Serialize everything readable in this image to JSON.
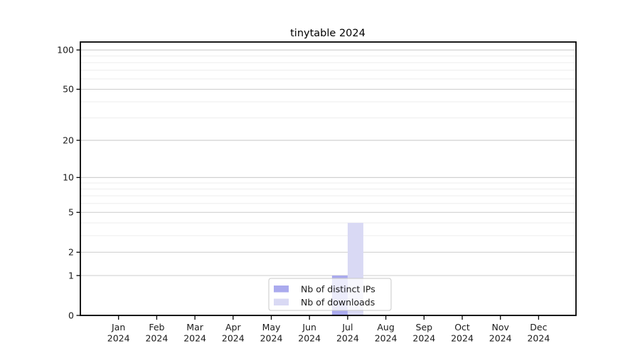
{
  "chart_data": {
    "type": "bar",
    "title": "tinytable 2024",
    "xlabel": "",
    "ylabel": "",
    "categories": [
      "Jan",
      "Feb",
      "Mar",
      "Apr",
      "May",
      "Jun",
      "Jul",
      "Aug",
      "Sep",
      "Oct",
      "Nov",
      "Dec"
    ],
    "x_year": "2024",
    "series": [
      {
        "name": "Nb of distinct IPs",
        "color": "#aaaaee",
        "values": [
          0,
          0,
          0,
          0,
          0,
          0,
          1,
          0,
          0,
          0,
          0,
          0
        ]
      },
      {
        "name": "Nb of downloads",
        "color": "#d9d9f4",
        "values": [
          0,
          0,
          0,
          0,
          0,
          0,
          4,
          0,
          0,
          0,
          0,
          0
        ]
      }
    ],
    "yscale": "log1p",
    "ylim": [
      0,
      115
    ],
    "yticks": [
      0,
      1,
      2,
      5,
      10,
      20,
      50,
      100
    ],
    "minor_gridlines": [
      3,
      4,
      6,
      7,
      8,
      9,
      30,
      40,
      60,
      70,
      80,
      90
    ],
    "grid": "on",
    "legend_position": "lower-center"
  },
  "colors": {
    "major_grid": "#cccccc",
    "minor_grid": "#ededed",
    "axis": "#000000",
    "text": "#1a1a1a",
    "legend_border": "#c8c8c8",
    "legend_fill": "rgba(255,255,255,0.78)"
  }
}
